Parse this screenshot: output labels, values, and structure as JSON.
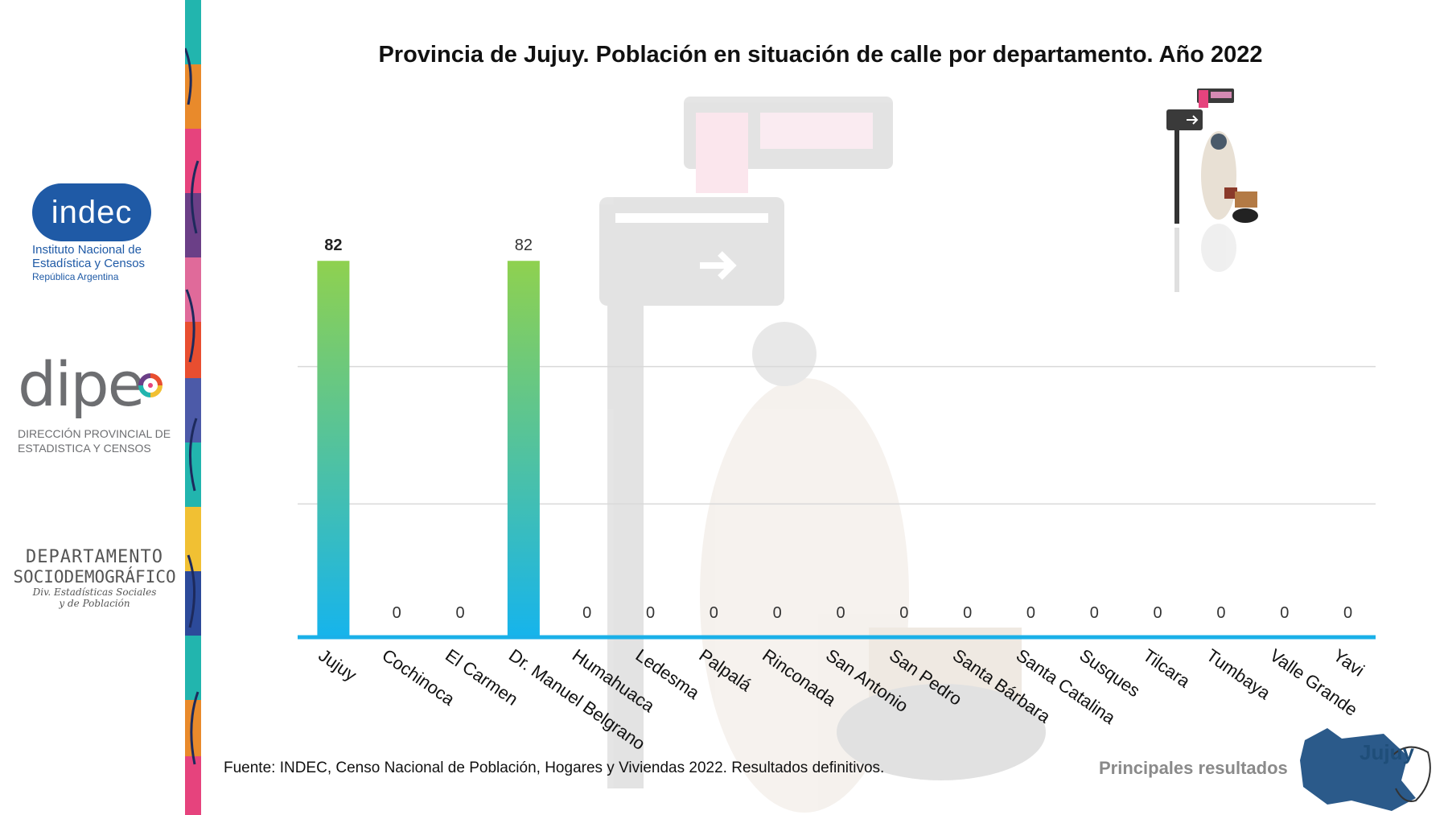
{
  "title": "Provincia de Jujuy. Población en situación de calle por departamento. Año 2022",
  "logos": {
    "indec_word": "indec",
    "indec_line1": "Instituto Nacional de",
    "indec_line2": "Estadística y Censos",
    "indec_line3": "República Argentina",
    "dipec_word": "dipe",
    "dipec_line1": "DIRECCIÓN PROVINCIAL DE",
    "dipec_line2": "ESTADISTICA Y CENSOS",
    "depto_line1": "DEPARTAMENTO",
    "depto_line2": "SOCIODEMOGRÁFICO",
    "depto_line3": "Div. Estadísticas Sociales",
    "depto_line4": "y de Población"
  },
  "footer": {
    "source": "Fuente: INDEC, Censo Nacional de Población, Hogares y Viviendas 2022. Resultados definitivos.",
    "tag": "Principales resultados",
    "map_label": "Jujuy"
  },
  "colors": {
    "bar_top": "#8fd14f",
    "bar_bottom": "#16b4ec",
    "baseline": "#1ab0e8",
    "grid": "#d9d9d9"
  },
  "chart_data": {
    "type": "bar",
    "title": "Provincia de Jujuy. Población en situación de calle por departamento. Año 2022",
    "categories": [
      "Jujuy",
      "Cochinoca",
      "El Carmen",
      "Dr. Manuel Belgrano",
      "Humahuaca",
      "Ledesma",
      "Palpalá",
      "Rinconada",
      "San Antonio",
      "San Pedro",
      "Santa Bárbara",
      "Santa Catalina",
      "Susques",
      "Tilcara",
      "Tumbaya",
      "Valle Grande",
      "Yavi"
    ],
    "values": [
      82,
      0,
      0,
      82,
      0,
      0,
      0,
      0,
      0,
      0,
      0,
      0,
      0,
      0,
      0,
      0,
      0
    ],
    "value_labels": [
      "82",
      "0",
      "0",
      "82",
      "0",
      "0",
      "0",
      "0",
      "0",
      "0",
      "0",
      "0",
      "0",
      "0",
      "0",
      "0",
      "0"
    ],
    "ylim": [
      0,
      88
    ],
    "grid": true,
    "xlabel": "",
    "ylabel": ""
  }
}
